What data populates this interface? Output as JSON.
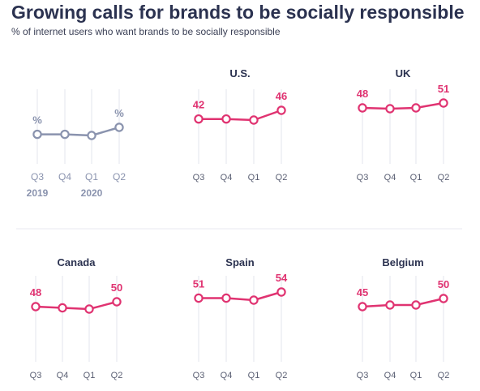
{
  "header": {
    "title": "Growing calls for brands to be socially responsible",
    "subtitle": "% of internet users who want brands to be socially responsible"
  },
  "colors": {
    "accent": "#e03371",
    "legend": "#8a93ae",
    "grid": "#e3e6ee",
    "tick": "#5a5f73",
    "panel_title": "#2b3250"
  },
  "chart_data": [
    {
      "type": "line",
      "role": "legend",
      "title": "",
      "categories": [
        "Q3",
        "Q4",
        "Q1",
        "Q2"
      ],
      "year_labels": [
        "2019",
        "2020"
      ],
      "values": [
        46,
        46,
        45.5,
        49
      ],
      "start_label": "%",
      "end_label": "%"
    },
    {
      "type": "line",
      "title": "U.S.",
      "categories": [
        "Q3",
        "Q4",
        "Q1",
        "Q2"
      ],
      "values": [
        42,
        42,
        41.5,
        46
      ],
      "start_label": "42",
      "end_label": "46"
    },
    {
      "type": "line",
      "title": "UK",
      "categories": [
        "Q3",
        "Q4",
        "Q1",
        "Q2"
      ],
      "values": [
        48,
        47.5,
        48,
        51
      ],
      "start_label": "48",
      "end_label": "51"
    },
    {
      "type": "line",
      "title": "Canada",
      "categories": [
        "Q3",
        "Q4",
        "Q1",
        "Q2"
      ],
      "values": [
        48,
        47.5,
        47,
        50
      ],
      "start_label": "48",
      "end_label": "50"
    },
    {
      "type": "line",
      "title": "Spain",
      "categories": [
        "Q3",
        "Q4",
        "Q1",
        "Q2"
      ],
      "values": [
        51,
        51,
        50,
        54
      ],
      "start_label": "51",
      "end_label": "54"
    },
    {
      "type": "line",
      "title": "Belgium",
      "categories": [
        "Q3",
        "Q4",
        "Q1",
        "Q2"
      ],
      "values": [
        45,
        46,
        46,
        50
      ],
      "start_label": "45",
      "end_label": "50"
    }
  ]
}
